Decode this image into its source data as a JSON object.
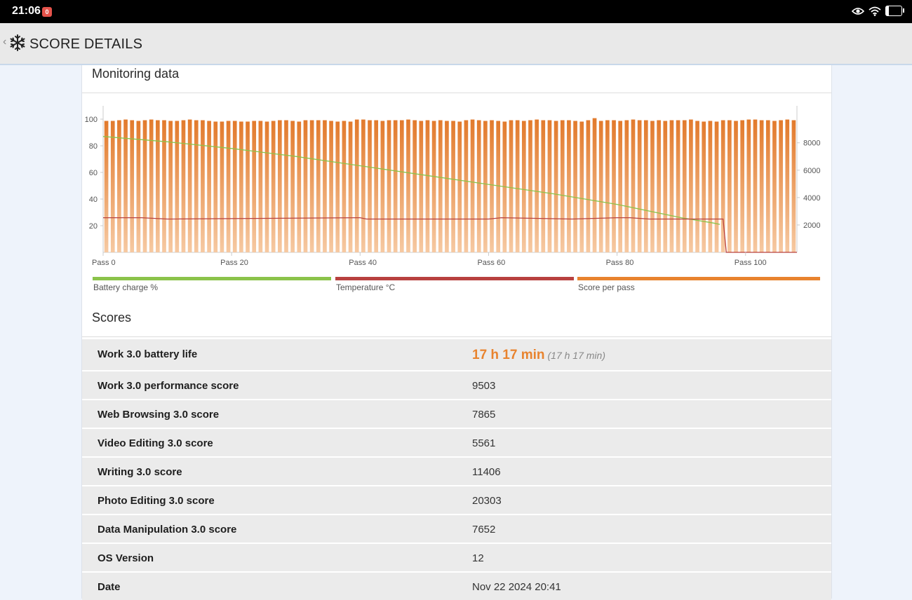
{
  "status_bar": {
    "time": "21:06",
    "notification_badge": "0",
    "battery": "18",
    "battery_level": 0.18
  },
  "app_bar": {
    "title": "SCORE DETAILS"
  },
  "monitoring": {
    "title": "Monitoring data",
    "legend": [
      {
        "label": "Battery charge %",
        "color": "#8bc34a"
      },
      {
        "label": "Temperature °C",
        "color": "#b8413f"
      },
      {
        "label": "Score per pass",
        "color": "#e8832e"
      }
    ]
  },
  "chart_data": {
    "type": "bar",
    "x_tick_labels": [
      "Pass 0",
      "Pass 20",
      "Pass 40",
      "Pass 60",
      "Pass 80",
      "Pass 100"
    ],
    "left_axis_ticks": [
      "100",
      "80",
      "60",
      "40",
      "20"
    ],
    "right_axis_ticks": [
      "8000",
      "6000",
      "4000",
      "2000"
    ],
    "ylim_left": [
      0,
      110
    ],
    "ylim_right": [
      0,
      10700
    ],
    "passes": 108,
    "series": [
      {
        "name": "Score per pass",
        "axis": "right",
        "color": "#e8832e",
        "values": [
          9600,
          9600,
          9650,
          9700,
          9650,
          9600,
          9650,
          9700,
          9650,
          9650,
          9600,
          9600,
          9650,
          9700,
          9650,
          9650,
          9600,
          9550,
          9550,
          9600,
          9600,
          9550,
          9550,
          9600,
          9600,
          9550,
          9600,
          9650,
          9650,
          9600,
          9550,
          9650,
          9650,
          9650,
          9650,
          9600,
          9550,
          9600,
          9550,
          9700,
          9700,
          9650,
          9650,
          9600,
          9650,
          9650,
          9650,
          9700,
          9650,
          9600,
          9650,
          9600,
          9650,
          9600,
          9600,
          9550,
          9650,
          9700,
          9650,
          9600,
          9650,
          9600,
          9550,
          9650,
          9650,
          9600,
          9650,
          9700,
          9650,
          9650,
          9600,
          9650,
          9650,
          9600,
          9550,
          9650,
          9800,
          9600,
          9650,
          9650,
          9600,
          9650,
          9700,
          9650,
          9650,
          9600,
          9650,
          9600,
          9650,
          9650,
          9650,
          9700,
          9600,
          9550,
          9600,
          9550,
          9650,
          9650,
          9600,
          9650,
          9700,
          9700,
          9650,
          9650,
          9600,
          9650,
          9700,
          9650
        ]
      },
      {
        "name": "Battery charge %",
        "axis": "left",
        "color": "#8bc34a",
        "x": [
          0,
          10,
          20,
          30,
          40,
          50,
          60,
          70,
          80,
          90,
          95,
          96
        ],
        "values": [
          87,
          83,
          78,
          72,
          65,
          58,
          51,
          44,
          36,
          26,
          22,
          21
        ]
      },
      {
        "name": "Temperature °C",
        "axis": "left",
        "color": "#b8413f",
        "x": [
          0,
          6,
          10,
          40,
          41,
          60,
          62,
          73,
          80,
          82,
          85,
          96,
          96.5,
          97,
          108
        ],
        "values": [
          26,
          26,
          25,
          26,
          25,
          25,
          26,
          25,
          26,
          26,
          25,
          25,
          25,
          0,
          0
        ]
      }
    ]
  },
  "scores": {
    "title": "Scores",
    "rows": [
      {
        "label": "Work 3.0 battery life",
        "value": "17 h 17 min",
        "sub": "(17 h 17 min)"
      },
      {
        "label": "Work 3.0 performance score",
        "value": "9503"
      },
      {
        "label": "Web Browsing 3.0 score",
        "value": "7865"
      },
      {
        "label": "Video Editing 3.0 score",
        "value": "5561"
      },
      {
        "label": "Writing 3.0 score",
        "value": "11406"
      },
      {
        "label": "Photo Editing 3.0 score",
        "value": "20303"
      },
      {
        "label": "Data Manipulation 3.0 score",
        "value": "7652"
      },
      {
        "label": "OS Version",
        "value": "12"
      },
      {
        "label": "Date",
        "value": "Nov 22 2024 20:41"
      }
    ]
  }
}
